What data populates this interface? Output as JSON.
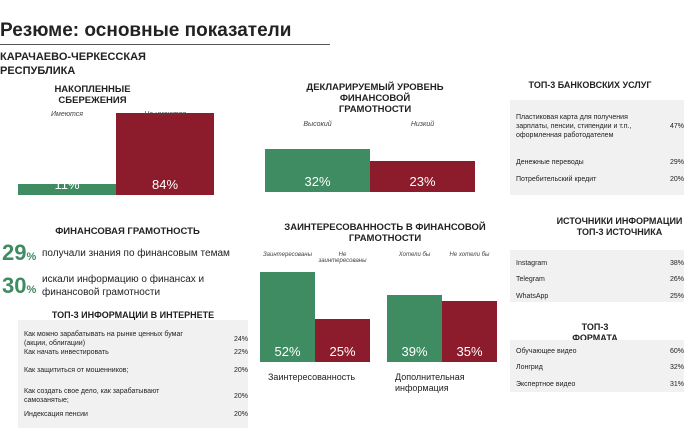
{
  "title": "Резюме: основные показатели",
  "region": "КАРАЧАЕВО-ЧЕРКЕССКАЯ РЕСПУБЛИКА",
  "chart_data": [
    {
      "type": "bar",
      "title": "НАКОПЛЕННЫЕ СБЕРЕЖЕНИЯ",
      "categories": [
        "Имеются",
        "Не имеются"
      ],
      "values": [
        11,
        84
      ],
      "value_labels": [
        "11%",
        "84%"
      ],
      "colors": [
        "#3f8b62",
        "#8c1c2c"
      ]
    },
    {
      "type": "bar",
      "title": "ДЕКЛАРИРУЕМЫЙ УРОВЕНЬ ФИНАНСОВОЙ ГРАМОТНОСТИ",
      "categories": [
        "Высокий",
        "Низкий"
      ],
      "values": [
        32,
        23
      ],
      "value_labels": [
        "32%",
        "23%"
      ],
      "colors": [
        "#3f8b62",
        "#8c1c2c"
      ]
    },
    {
      "type": "grouped_bar",
      "title": "ЗАИНТЕРЕСОВАННОСТЬ В ФИНАНСОВОЙ ГРАМОТНОСТИ",
      "groups": [
        {
          "label": "Заинтересованность",
          "categories": [
            "Заинтересованы",
            "Не заинтересованы"
          ],
          "values": [
            52,
            25
          ],
          "value_labels": [
            "52%",
            "25%"
          ]
        },
        {
          "label": "Дополнительная информация",
          "categories": [
            "Хотели бы",
            "Не хотели бы"
          ],
          "values": [
            39,
            35
          ],
          "value_labels": [
            "39%",
            "35%"
          ]
        }
      ],
      "colors": [
        "#3f8b62",
        "#8c1c2c"
      ]
    }
  ],
  "literacy": {
    "title": "ФИНАНСОВАЯ ГРАМОТНОСТЬ",
    "items": [
      {
        "number": "29",
        "unit": "%",
        "text": "получали знания по финансовым темам"
      },
      {
        "number": "30",
        "unit": "%",
        "text": "искали информацию о финансах и финансовой грамотности"
      }
    ]
  },
  "internet_table": {
    "title": "ТОП-3 ИНФОРМАЦИИ В ИНТЕРНЕТЕ",
    "rows": [
      [
        "Как можно зарабатывать на рынке ценных бумаг (акции, облигации)",
        "24%"
      ],
      [
        "Как начать инвестировать",
        "22%"
      ],
      [
        "Как защититься от мошенников;",
        "20%"
      ],
      [
        "Как создать свое дело, как зарабатывают самозанятые;",
        "20%"
      ],
      [
        "Индексация пенсии",
        "20%"
      ]
    ]
  },
  "bank_table": {
    "title": "ТОП-3 БАНКОВСКИХ УСЛУГ",
    "rows": [
      [
        "Пластиковая карта для получения зарплаты, пенсии, стипендии и т.п., оформленная работодателем",
        "47%"
      ],
      [
        "Денежные переводы",
        "29%"
      ],
      [
        "Потребительский кредит",
        "20%"
      ]
    ]
  },
  "sources_table": {
    "title": "ИСТОЧНИКИ ИНФОРМАЦИИ ТОП-3 ИСТОЧНИКА",
    "rows": [
      [
        "Instagram",
        "38%"
      ],
      [
        "Telegram",
        "26%"
      ],
      [
        "WhatsApp",
        "25%"
      ]
    ]
  },
  "format_table": {
    "title": "ТОП-3 ФОРМАТА",
    "rows": [
      [
        "Обучающее видео",
        "60%"
      ],
      [
        "Лонгрид",
        "32%"
      ],
      [
        "Экспертное видео",
        "31%"
      ]
    ]
  }
}
